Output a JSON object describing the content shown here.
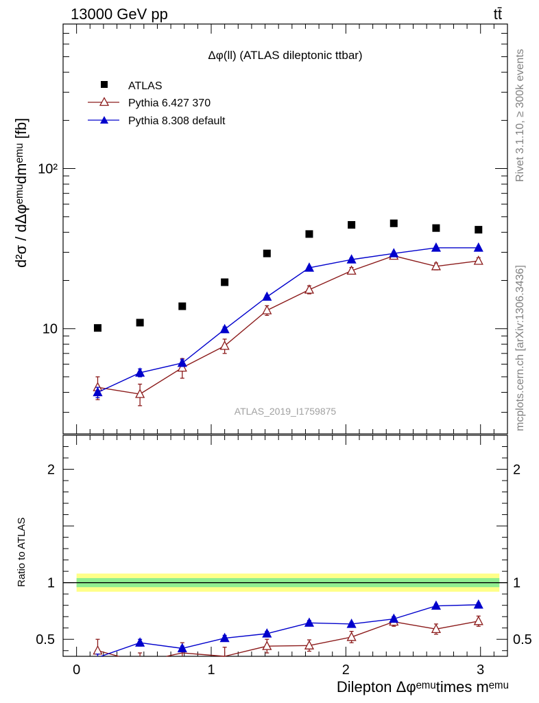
{
  "header": {
    "left": "13000 GeV pp",
    "right": "tt̄"
  },
  "side_labels": {
    "rivet": "Rivet 3.1.10, ≥ 300k events",
    "source": "mcplots.cern.ch [arXiv:1306.3436]"
  },
  "chart_data": {
    "type": "scatter",
    "title": "Δφ(ll) (ATLAS dileptonic ttbar)",
    "watermark": "ATLAS_2019_I1759875",
    "ylabel_main": "d²σ / dΔφᵉᵐᵘdmᵉᵐᵘ [fb]",
    "ylabel_ratio": "Ratio to ATLAS",
    "xlabel": "Dilepton Δφᵉᵐᵘtimes mᵉᵐᵘ",
    "xlim": [
      -0.1,
      3.2
    ],
    "ylim_main": [
      2.2,
      800
    ],
    "ylim_ratio": [
      0.35,
      2.3
    ],
    "yscale_main": "log",
    "x_ticks": [
      0,
      1,
      2,
      3
    ],
    "y_tick_labels_main": [
      {
        "v": 10,
        "label": "10"
      },
      {
        "v": 100,
        "label": "10²"
      }
    ],
    "y_ticks_ratio": [
      {
        "v": 0.5,
        "label": "0.5"
      },
      {
        "v": 1,
        "label": "1"
      },
      {
        "v": 2,
        "label": "2"
      }
    ],
    "x": [
      0.157,
      0.471,
      0.785,
      1.1,
      1.414,
      1.728,
      2.042,
      2.356,
      2.67,
      2.985
    ],
    "series": [
      {
        "name": "ATLAS",
        "marker": "square",
        "color": "#000000",
        "values": [
          10.1,
          10.9,
          13.8,
          19.5,
          29.5,
          39.0,
          44.5,
          45.5,
          42.5,
          41.5
        ],
        "errors": []
      },
      {
        "name": "Pythia 6.427 370",
        "marker": "triangle-open",
        "color": "#8b1a1a",
        "values": [
          4.3,
          3.9,
          5.7,
          7.8,
          13.0,
          17.5,
          23.0,
          28.5,
          24.5,
          26.5
        ],
        "errors": [
          0.7,
          0.6,
          0.8,
          0.8,
          0.9,
          1.0,
          1.1,
          1.1,
          1.2,
          1.2
        ],
        "ratio": [
          0.4,
          0.3,
          0.38,
          0.35,
          0.44,
          0.445,
          0.52,
          0.655,
          0.59,
          0.66
        ],
        "ratio_errors": [
          0.1,
          0.08,
          0.09,
          0.08,
          0.06,
          0.05,
          0.05,
          0.04,
          0.045,
          0.045
        ]
      },
      {
        "name": "Pythia 8.308 default",
        "marker": "triangle-filled",
        "color": "#0000cc",
        "values": [
          4.0,
          5.3,
          6.1,
          9.9,
          15.8,
          24.0,
          27.0,
          29.5,
          32.0,
          32.0
        ],
        "errors": [
          0.3,
          0.3,
          0.3,
          0.35,
          0.4,
          0.5,
          0.6,
          0.6,
          0.6,
          0.6
        ],
        "ratio": [
          0.34,
          0.47,
          0.42,
          0.51,
          0.55,
          0.645,
          0.635,
          0.68,
          0.795,
          0.805
        ],
        "ratio_errors": [
          0.03,
          0.03,
          0.02,
          0.025,
          0.02,
          0.02,
          0.015,
          0.02,
          0.015,
          0.015
        ]
      }
    ],
    "ratio_band": {
      "inner": [
        0.96,
        1.04
      ],
      "outer": [
        0.92,
        1.08
      ]
    }
  }
}
